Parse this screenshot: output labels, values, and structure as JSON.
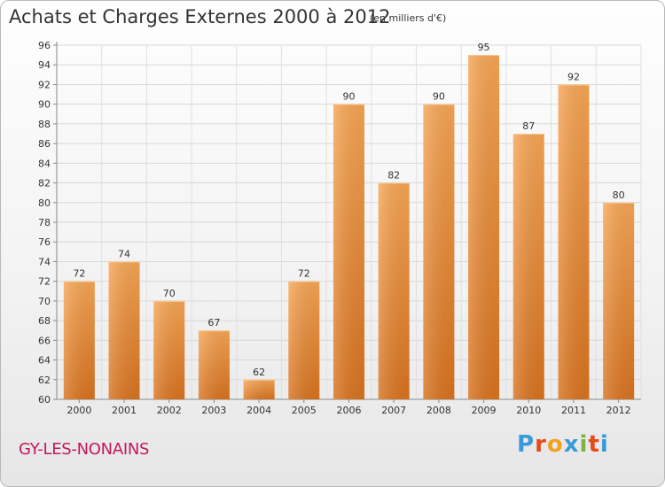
{
  "header": {
    "title": "Achats et Charges Externes 2000 à 2012",
    "subtitle": "(en milliers d'€)"
  },
  "footer": {
    "place": "GY-LES-NONAINS",
    "logo_letters": [
      "P",
      "r",
      "o",
      "x",
      "i",
      "t",
      "i"
    ],
    "logo_colors": [
      "#3a9ad9",
      "#e64a19",
      "#f2a01e",
      "#3a9ad9",
      "#7cb342",
      "#e64a19",
      "#3a9ad9"
    ]
  },
  "chart_data": {
    "type": "bar",
    "title": "Achats et Charges Externes 2000 à 2012",
    "subtitle": "(en milliers d'€)",
    "categories": [
      "2000",
      "2001",
      "2002",
      "2003",
      "2004",
      "2005",
      "2006",
      "2007",
      "2008",
      "2009",
      "2010",
      "2011",
      "2012"
    ],
    "values": [
      72,
      74,
      70,
      67,
      62,
      72,
      90,
      82,
      90,
      95,
      87,
      92,
      80
    ],
    "ylim": [
      60,
      96
    ],
    "yticks": [
      60,
      62,
      64,
      66,
      68,
      70,
      72,
      74,
      76,
      78,
      80,
      82,
      84,
      86,
      88,
      90,
      92,
      94,
      96
    ],
    "grid": true,
    "bar_color_top": "#f7a655",
    "bar_color_bottom": "#d9731f"
  }
}
